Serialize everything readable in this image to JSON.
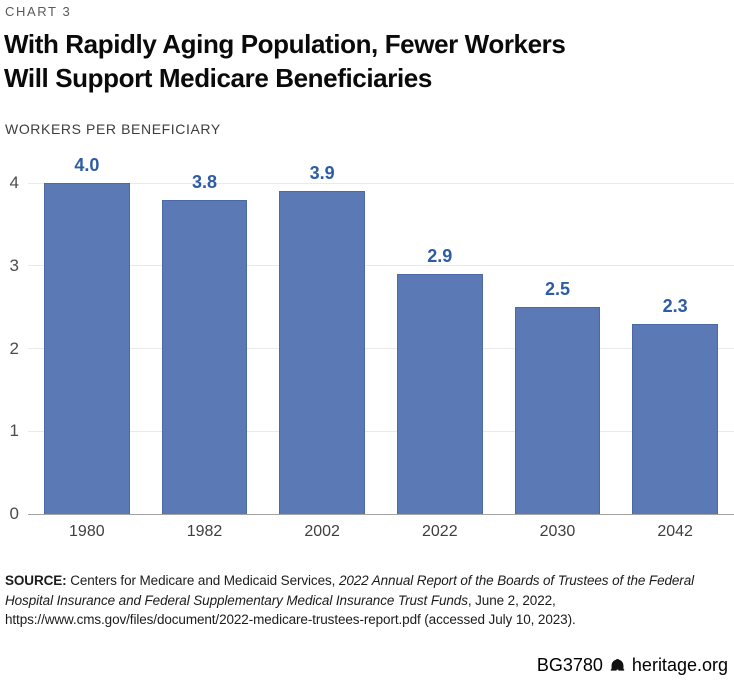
{
  "kicker": "CHART 3",
  "title": "With Rapidly Aging Population, Fewer Workers Will Support Medicare Beneficiaries",
  "subtitle": "WORKERS PER BENEFICIARY",
  "chart_data": {
    "type": "bar",
    "categories": [
      "1980",
      "1982",
      "2002",
      "2022",
      "2030",
      "2042"
    ],
    "values": [
      4.0,
      3.8,
      3.9,
      2.9,
      2.5,
      2.3
    ],
    "value_labels": [
      "4.0",
      "3.8",
      "3.9",
      "2.9",
      "2.5",
      "2.3"
    ],
    "title": "With Rapidly Aging Population, Fewer Workers Will Support Medicare Beneficiaries",
    "xlabel": "",
    "ylabel": "WORKERS PER BENEFICIARY",
    "ylim": [
      0,
      4
    ],
    "yticks": [
      0,
      1,
      2,
      3,
      4
    ],
    "grid": true,
    "legend": "none",
    "bar_color": "#5b79b4",
    "value_label_color": "#2d5ca6",
    "gridline_color": "#eaeaea",
    "baseline_color": "#a3a3a3"
  },
  "source": {
    "label": "SOURCE:",
    "text_before_italic": " Centers for Medicare and Medicaid Services, ",
    "italic": "2022 Annual Report of the Boards of Trustees of the Federal Hospital Insurance and Federal Supplementary Medical Insurance Trust Funds",
    "text_after_italic": ", June 2, 2022, https://www.cms.gov/files/document/2022-medicare-trustees-report.pdf (accessed July 10, 2023)."
  },
  "footer": {
    "report_id": "BG3780",
    "brand": "heritage.org",
    "icon": "liberty-bell-icon"
  }
}
